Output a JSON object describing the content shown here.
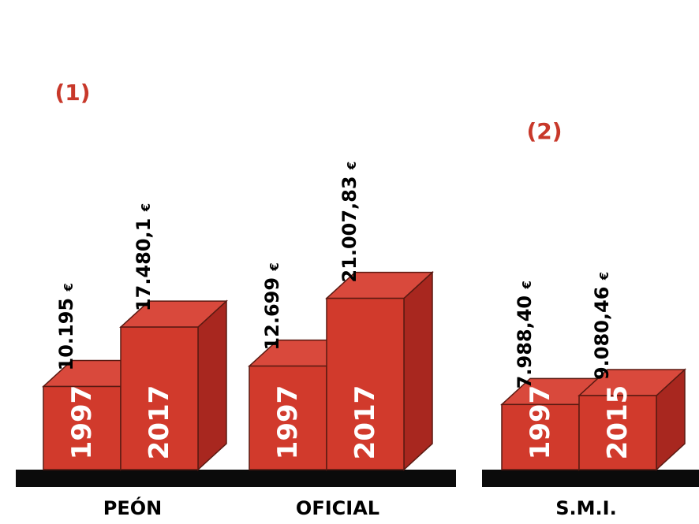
{
  "chart_data": {
    "type": "bar",
    "style": "3d",
    "bar_color": "#d13a2c",
    "side_color": "#a8271f",
    "top_color": "#d9493c",
    "edge_color": "#5a1a12",
    "baseline_color": "#0b0b0b",
    "note_color": "#c8382a",
    "currency": "€",
    "y_scale_max": 22000,
    "groups": [
      {
        "label": "PEÓN",
        "note": "(1)",
        "bars": [
          {
            "year": "1997",
            "value": 10195,
            "value_label": "10.195"
          },
          {
            "year": "2017",
            "value": 17480.1,
            "value_label": "17.480,1"
          }
        ]
      },
      {
        "label": "OFICIAL",
        "note": "",
        "bars": [
          {
            "year": "1997",
            "value": 12699,
            "value_label": "12.699"
          },
          {
            "year": "2017",
            "value": 21007.83,
            "value_label": "21.007,83"
          }
        ]
      },
      {
        "label": "S.M.I.",
        "note": "(2)",
        "bars": [
          {
            "year": "1997",
            "value": 7988.4,
            "value_label": "7.988,40"
          },
          {
            "year": "2015",
            "value": 9080.46,
            "value_label": "9.080,46"
          }
        ]
      }
    ]
  }
}
